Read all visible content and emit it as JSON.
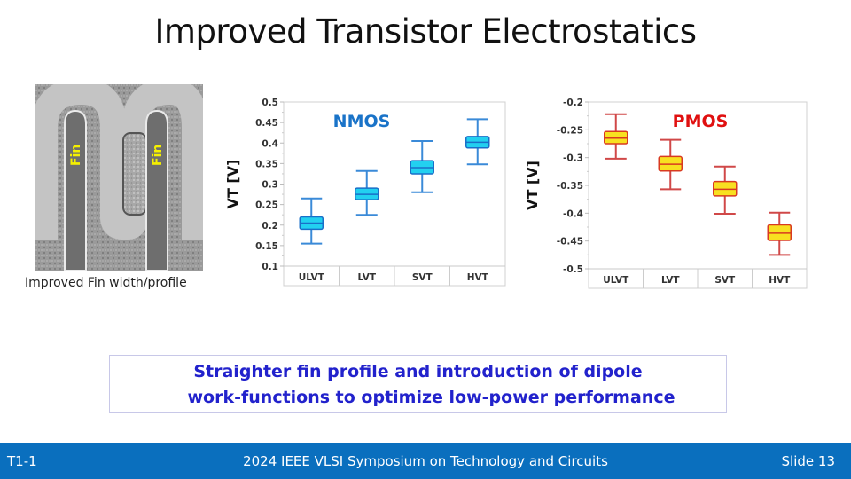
{
  "slide": {
    "title": "Improved Transistor Electrostatics",
    "image": {
      "fin_labels": [
        "Fin",
        "Fin"
      ],
      "caption": "Improved Fin width/profile"
    },
    "callout": {
      "line1": "Straighter fin profile and introduction of dipole",
      "line2": "work-functions to optimize low-power performance"
    },
    "footer": {
      "left": "T1-1",
      "center": "2024 IEEE VLSI Symposium on Technology and Circuits",
      "right": "Slide 13"
    },
    "colors": {
      "footer_bg": "#0a6fbe",
      "nmos_label": "#1a73c8",
      "nmos_box": "#22d0f0",
      "nmos_line": "#3a8ad8",
      "pmos_label": "#e01010",
      "pmos_box": "#f8e020",
      "pmos_line": "#d04848",
      "callout_text": "#2222cc"
    }
  },
  "chart_data": [
    {
      "type": "box",
      "title": "NMOS",
      "xlabel": "",
      "ylabel": "VT [V]",
      "categories": [
        "ULVT",
        "LVT",
        "SVT",
        "HVT"
      ],
      "ylim": [
        0.1,
        0.5
      ],
      "yticks": [
        "0.5",
        "0.45",
        "0.4",
        "0.35",
        "0.3",
        "0.25",
        "0.2",
        "0.15",
        "0.1"
      ],
      "series": [
        {
          "name": "ULVT",
          "min": 0.155,
          "q1": 0.19,
          "median": 0.205,
          "q3": 0.22,
          "max": 0.265
        },
        {
          "name": "LVT",
          "min": 0.225,
          "q1": 0.262,
          "median": 0.275,
          "q3": 0.29,
          "max": 0.332
        },
        {
          "name": "SVT",
          "min": 0.28,
          "q1": 0.325,
          "median": 0.34,
          "q3": 0.357,
          "max": 0.405
        },
        {
          "name": "HVT",
          "min": 0.348,
          "q1": 0.388,
          "median": 0.402,
          "q3": 0.416,
          "max": 0.458
        }
      ]
    },
    {
      "type": "box",
      "title": "PMOS",
      "xlabel": "",
      "ylabel": "VT [V]",
      "categories": [
        "ULVT",
        "LVT",
        "SVT",
        "HVT"
      ],
      "ylim": [
        -0.5,
        -0.2
      ],
      "yticks": [
        "-0.2",
        "-0.25",
        "-0.3",
        "-0.35",
        "-0.4",
        "-0.45",
        "-0.5"
      ],
      "series": [
        {
          "name": "ULVT",
          "min": -0.302,
          "q1": -0.275,
          "median": -0.265,
          "q3": -0.253,
          "max": -0.222
        },
        {
          "name": "LVT",
          "min": -0.357,
          "q1": -0.324,
          "median": -0.312,
          "q3": -0.298,
          "max": -0.268
        },
        {
          "name": "SVT",
          "min": -0.401,
          "q1": -0.369,
          "median": -0.357,
          "q3": -0.343,
          "max": -0.316
        },
        {
          "name": "HVT",
          "min": -0.475,
          "q1": -0.449,
          "median": -0.436,
          "q3": -0.421,
          "max": -0.399
        }
      ]
    }
  ]
}
